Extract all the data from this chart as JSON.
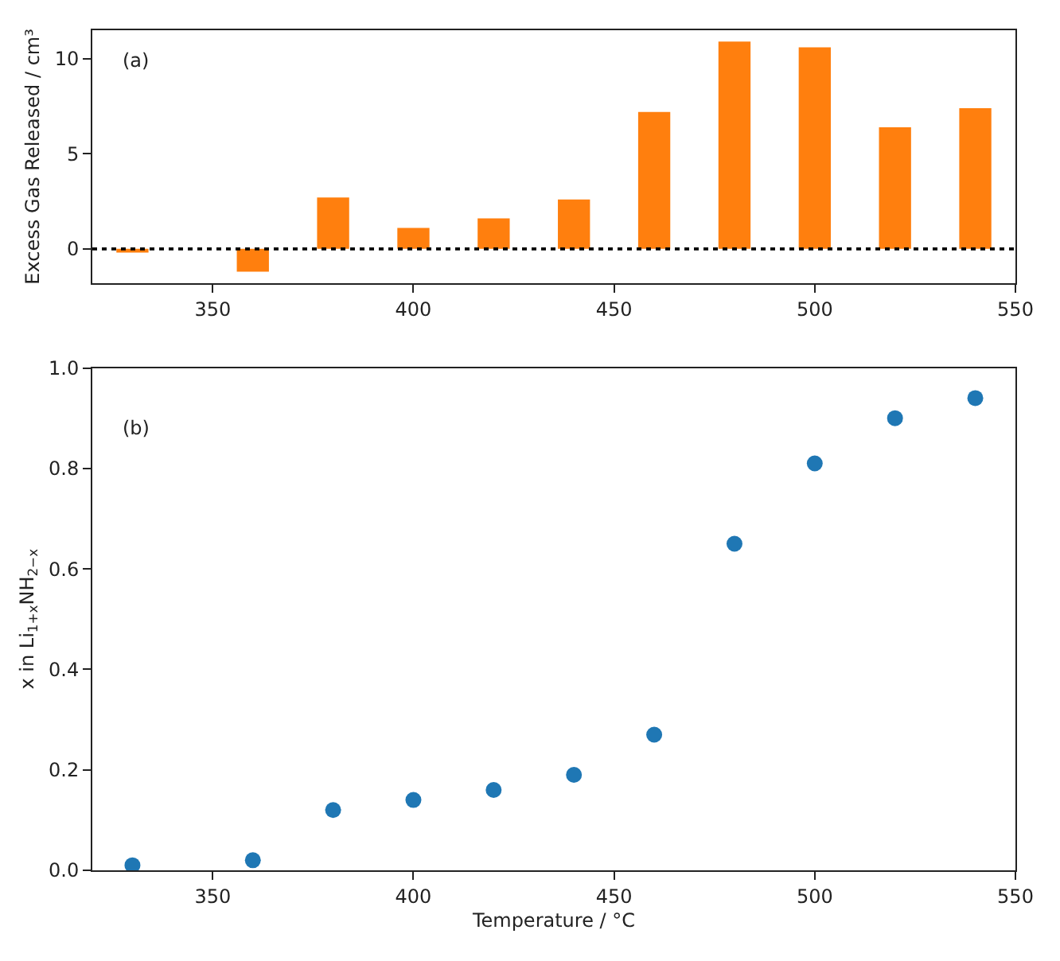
{
  "chart_data": [
    {
      "type": "bar",
      "ylabel": "Excess Gas Released / cm³",
      "annotations": [
        "(a)"
      ],
      "x": [
        330,
        360,
        380,
        400,
        420,
        440,
        460,
        480,
        500,
        520,
        540
      ],
      "values": [
        -0.2,
        -1.2,
        2.7,
        1.1,
        1.6,
        2.6,
        7.2,
        10.9,
        10.6,
        6.4,
        7.4
      ],
      "color": "#ff7f0e",
      "xlim": [
        320,
        550
      ],
      "xticks": [
        350,
        400,
        450,
        500,
        550
      ],
      "ylim": [
        -1.8,
        11.5
      ],
      "yticks": [
        0,
        5,
        10
      ],
      "ref_lines": [
        {
          "axis": "y",
          "value": 0,
          "label": null,
          "color": "#000000",
          "line_style": "dotted"
        }
      ]
    },
    {
      "type": "scatter",
      "xlabel": "Temperature / °C",
      "ylabel": "x in Li$_{1+x}$NH$_{2−x}$",
      "annotations": [
        "(b)"
      ],
      "x": [
        330,
        360,
        380,
        400,
        420,
        440,
        460,
        480,
        500,
        520,
        540
      ],
      "values": [
        0.01,
        0.02,
        0.12,
        0.14,
        0.16,
        0.19,
        0.27,
        0.65,
        0.81,
        0.9,
        0.94
      ],
      "color": "#1f77b4",
      "marker": "circle",
      "xlim": [
        320,
        550
      ],
      "xticks": [
        350,
        400,
        450,
        500,
        550
      ],
      "ylim": [
        0,
        1.0
      ],
      "yticks": [
        {
          "value": 0,
          "label": "0.0"
        },
        0.2,
        0.4,
        0.6,
        0.8,
        {
          "value": 1,
          "label": "1.0"
        }
      ]
    }
  ]
}
